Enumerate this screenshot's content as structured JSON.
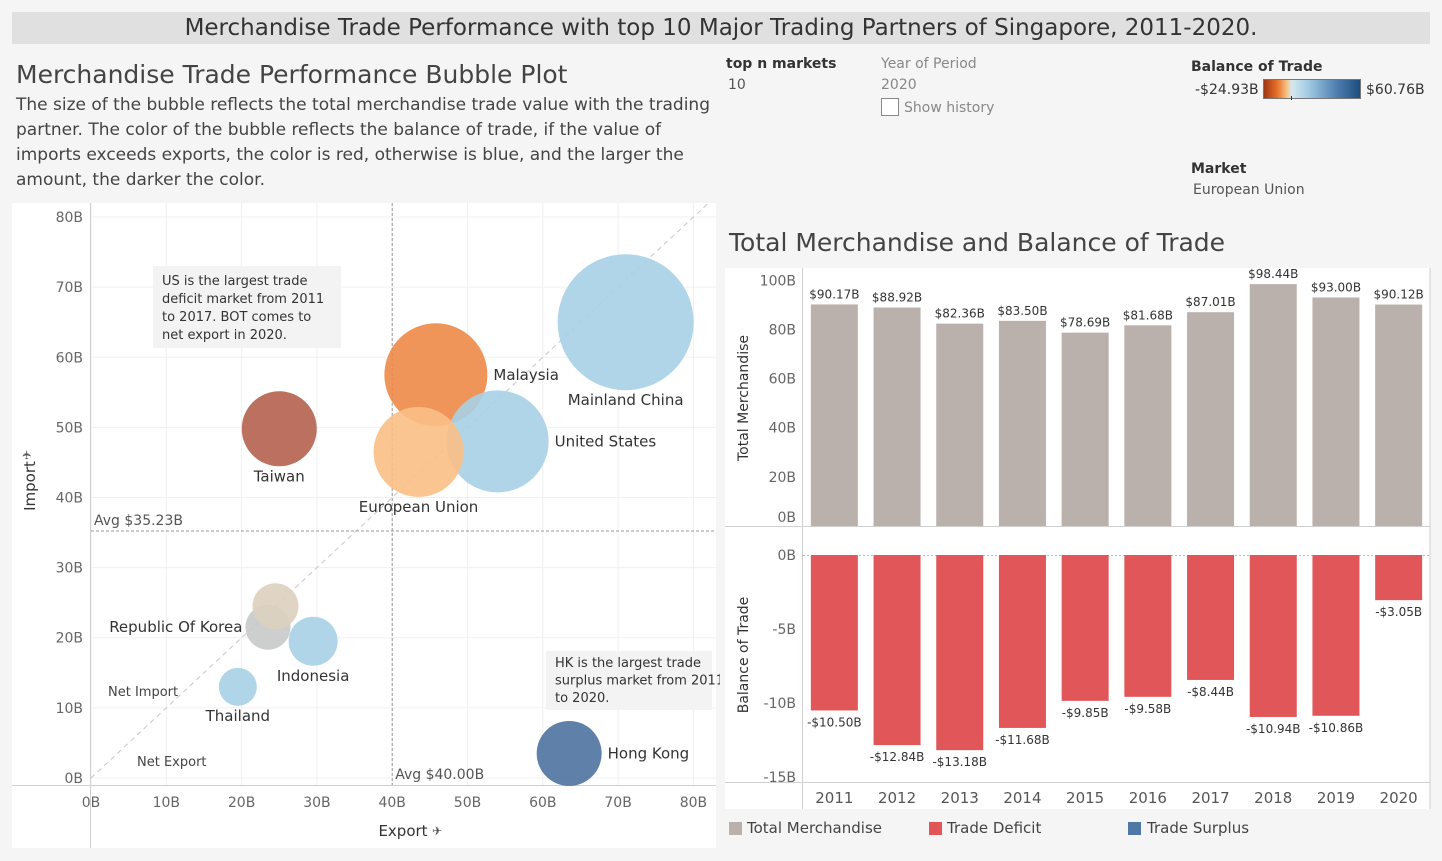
{
  "header": {
    "title": "Merchandise Trade Performance with top 10 Major Trading Partners of Singapore, 2011-2020."
  },
  "bubble_section": {
    "title": "Merchandise Trade Performance Bubble Plot",
    "description": "The size of the bubble reflects the total merchandise trade value with the trading partner. The color of the bubble reflects the balance of trade, if the value of imports exceeds exports, the color is red, otherwise is blue, and the larger the amount, the darker the color."
  },
  "controls": {
    "top_n_label": "top n markets",
    "top_n_value": "10",
    "year_label": "Year of Period",
    "year_value": "2020",
    "show_history_label": "Show history",
    "bot_label": "Balance of Trade",
    "bot_min": "-$24.93B",
    "bot_max": "$60.76B",
    "market_label": "Market",
    "market_value": "European Union"
  },
  "colors": {
    "total_merchandise": "#bab0ac",
    "trade_deficit": "#e15759",
    "trade_surplus": "#4e79a7"
  },
  "chart_data": [
    {
      "type": "scatter",
      "xlabel": "Export",
      "ylabel": "Import",
      "xlim": [
        0,
        83
      ],
      "ylim": [
        -1,
        82
      ],
      "x_ticks": [
        "0B",
        "10B",
        "20B",
        "30B",
        "40B",
        "50B",
        "60B",
        "70B",
        "80B"
      ],
      "y_ticks": [
        "0B",
        "10B",
        "20B",
        "30B",
        "40B",
        "50B",
        "60B",
        "70B",
        "80B"
      ],
      "x_tick_values": [
        0,
        10,
        20,
        30,
        40,
        50,
        60,
        70,
        80
      ],
      "y_tick_values": [
        0,
        10,
        20,
        30,
        40,
        50,
        60,
        70,
        80
      ],
      "reference_lines": [
        {
          "axis": "y",
          "value": 35.23,
          "label": "Avg $35.23B"
        },
        {
          "axis": "x",
          "value": 40.0,
          "label": "Avg $40.00B"
        }
      ],
      "diagonal_labels": [
        "Net Import",
        "Net Export"
      ],
      "annotations": [
        "US is the largest trade deficit market from 2011 to 2017. BOT comes to net export in 2020.",
        "HK is the largest trade surplus market from 2011 to 2020."
      ],
      "points": [
        {
          "name": "Mainland China",
          "x": 71.0,
          "y": 65.0,
          "size": 136,
          "color": "#a9d0e6"
        },
        {
          "name": "Malaysia",
          "x": 45.8,
          "y": 57.5,
          "size": 103,
          "color": "#ee8a48"
        },
        {
          "name": "United States",
          "x": 54.0,
          "y": 48.0,
          "size": 102,
          "color": "#a9d0e6"
        },
        {
          "name": "European Union",
          "x": 43.5,
          "y": 46.5,
          "size": 90,
          "color": "#fbbf86"
        },
        {
          "name": "Taiwan",
          "x": 25.0,
          "y": 49.8,
          "size": 75,
          "color": "#b5614f"
        },
        {
          "name": "Republic Of Korea",
          "x": 23.5,
          "y": 21.5,
          "size": 45,
          "color": "#c6cac8"
        },
        {
          "name": "",
          "x": 24.5,
          "y": 24.5,
          "size": 46,
          "color": "#ddd0bf"
        },
        {
          "name": "Indonesia",
          "x": 29.5,
          "y": 19.5,
          "size": 49,
          "color": "#a9d0e6"
        },
        {
          "name": "Thailand",
          "x": 19.5,
          "y": 13.0,
          "size": 38,
          "color": "#a9d0e6"
        },
        {
          "name": "Hong Kong",
          "x": 63.5,
          "y": 3.5,
          "size": 65,
          "color": "#4e729f"
        }
      ]
    },
    {
      "type": "bar",
      "xlabel": "",
      "ylabel": "Total Merchandise",
      "ylim": [
        0,
        105
      ],
      "y_ticks": [
        "0B",
        "20B",
        "40B",
        "60B",
        "80B",
        "100B"
      ],
      "y_tick_values": [
        0,
        20,
        40,
        60,
        80,
        100
      ],
      "categories": [
        "2011",
        "2012",
        "2013",
        "2014",
        "2015",
        "2016",
        "2017",
        "2018",
        "2019",
        "2020"
      ],
      "values": [
        90.17,
        88.92,
        82.36,
        83.5,
        78.69,
        81.68,
        87.01,
        98.44,
        93.0,
        90.12
      ],
      "labels": [
        "$90.17B",
        "$88.92B",
        "$82.36B",
        "$83.50B",
        "$78.69B",
        "$81.68B",
        "$87.01B",
        "$98.44B",
        "$93.00B",
        "$90.12B"
      ]
    },
    {
      "type": "bar",
      "xlabel": "",
      "ylabel": "Balance of Trade",
      "ylim": [
        -15.4,
        0
      ],
      "y_ticks": [
        "0B",
        "-5B",
        "-10B",
        "-15B"
      ],
      "y_tick_values": [
        0,
        -5,
        -10,
        -15
      ],
      "categories": [
        "2011",
        "2012",
        "2013",
        "2014",
        "2015",
        "2016",
        "2017",
        "2018",
        "2019",
        "2020"
      ],
      "values": [
        -10.5,
        -12.84,
        -13.18,
        -11.68,
        -9.85,
        -9.58,
        -8.44,
        -10.94,
        -10.86,
        -3.05
      ],
      "labels": [
        "-$10.50B",
        "-$12.84B",
        "-$13.18B",
        "-$11.68B",
        "-$9.85B",
        "-$9.58B",
        "-$8.44B",
        "-$10.94B",
        "-$10.86B",
        "-$3.05B"
      ]
    }
  ],
  "panel": {
    "title": "Total Merchandise and Balance of Trade"
  },
  "legend": {
    "items": [
      {
        "label": "Total Merchandise",
        "color": "#bab0ac"
      },
      {
        "label": "Trade Deficit",
        "color": "#e15759"
      },
      {
        "label": "Trade Surplus",
        "color": "#4e79a7"
      }
    ]
  }
}
